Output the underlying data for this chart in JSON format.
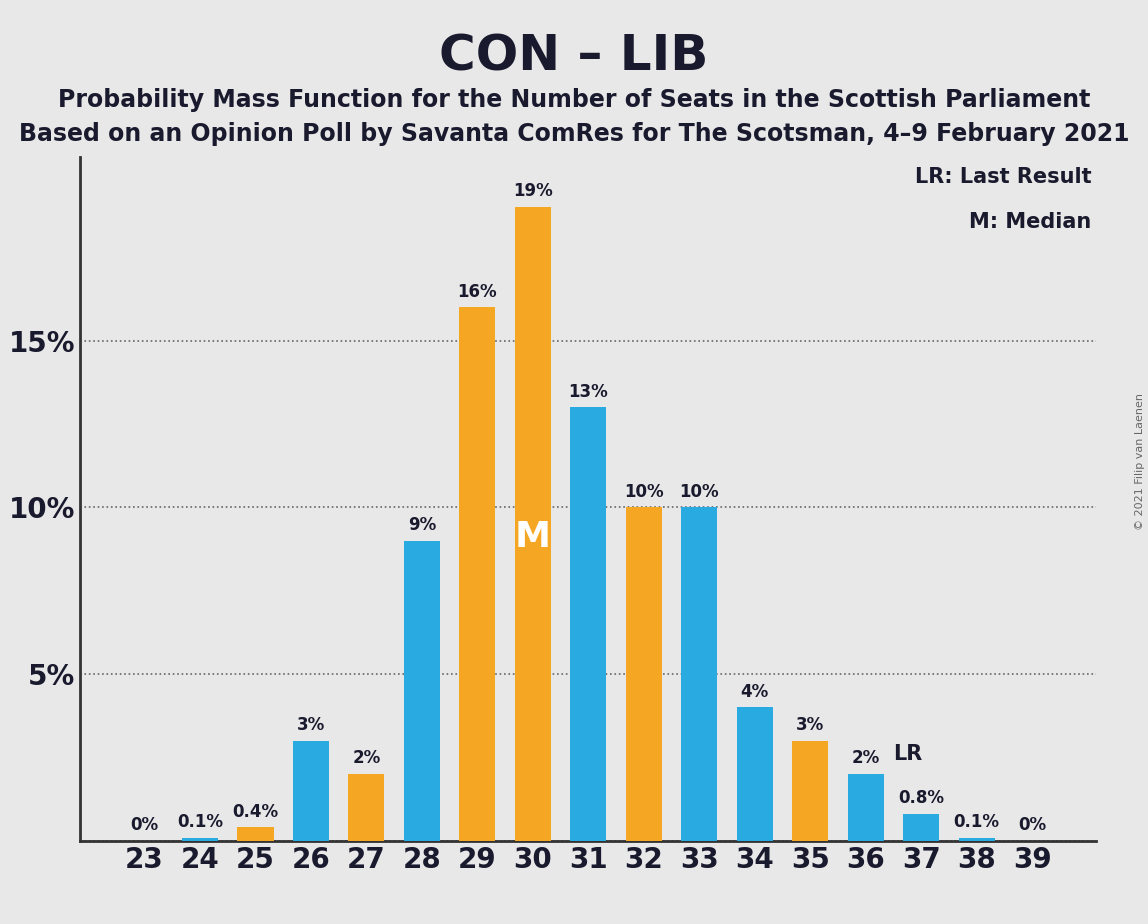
{
  "title": "CON – LIB",
  "subtitle1": "Probability Mass Function for the Number of Seats in the Scottish Parliament",
  "subtitle2": "Based on an Opinion Poll by Savanta ComRes for The Scotsman, 4–9 February 2021",
  "copyright": "© 2021 Filip van Laenen",
  "seats": [
    23,
    24,
    25,
    26,
    27,
    28,
    29,
    30,
    31,
    32,
    33,
    34,
    35,
    36,
    37,
    38,
    39
  ],
  "values": [
    0.0,
    0.1,
    0.4,
    3.0,
    2.0,
    9.0,
    16.0,
    19.0,
    13.0,
    10.0,
    10.0,
    4.0,
    3.0,
    2.0,
    0.8,
    0.1,
    0.0
  ],
  "bar_colors": [
    "#29ABE2",
    "#29ABE2",
    "#F5A623",
    "#29ABE2",
    "#F5A623",
    "#29ABE2",
    "#F5A623",
    "#F5A623",
    "#29ABE2",
    "#F5A623",
    "#29ABE2",
    "#29ABE2",
    "#F5A623",
    "#29ABE2",
    "#29ABE2",
    "#29ABE2",
    "#29ABE2"
  ],
  "bar_labels": [
    "0%",
    "0.1%",
    "0.4%",
    "3%",
    "2%",
    "9%",
    "16%",
    "19%",
    "13%",
    "10%",
    "10%",
    "4%",
    "3%",
    "2%",
    "0.8%",
    "0.1%",
    "0%"
  ],
  "blue_color": "#29ABE2",
  "orange_color": "#F5A623",
  "background_color": "#E8E8E8",
  "median_seat": 30,
  "lr_seat": 36,
  "ylim": [
    0,
    20.5
  ],
  "yticks": [
    0,
    5,
    10,
    15
  ],
  "ytick_labels": [
    "",
    "5%",
    "10%",
    "15%"
  ],
  "legend_lr": "LR: Last Result",
  "legend_m": "M: Median",
  "label_fontsize": 12,
  "tick_fontsize": 20,
  "title_fontsize": 36,
  "subtitle_fontsize": 17
}
